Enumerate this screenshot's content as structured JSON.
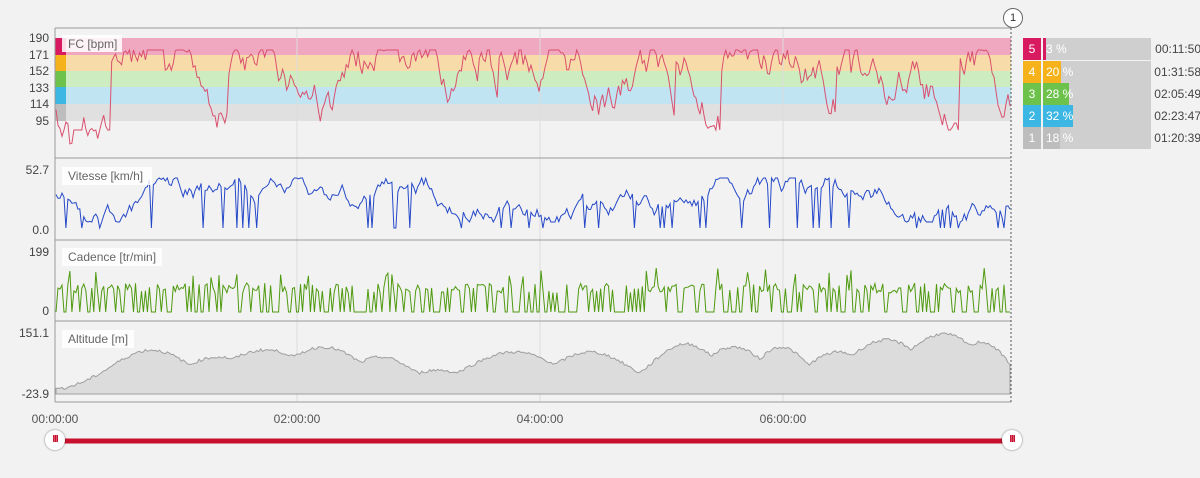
{
  "panels": {
    "hr": {
      "label": "FC [bpm]",
      "ticks": [
        "190",
        "171",
        "152",
        "133",
        "114",
        "95"
      ]
    },
    "speed": {
      "label": "Vitesse [km/h]",
      "max": "52.7",
      "min": "0.0"
    },
    "cadence": {
      "label": "Cadence [tr/min]",
      "max": "199",
      "min": "0"
    },
    "altitude": {
      "label": "Altitude [m]",
      "max": "151.1",
      "min": "-23.9"
    }
  },
  "x_axis": {
    "ticks": [
      "00:00:00",
      "02:00:00",
      "04:00:00",
      "06:00:00"
    ]
  },
  "marker": {
    "label": "1"
  },
  "zones": [
    {
      "num": "5",
      "pct": "3 %",
      "time": "00:11:50",
      "fraction": 0.03,
      "color": "#d81b60"
    },
    {
      "num": "4",
      "pct": "20 %",
      "time": "01:31:58",
      "fraction": 0.2,
      "color": "#f5b21b"
    },
    {
      "num": "3",
      "pct": "28 %",
      "time": "02:05:49",
      "fraction": 0.28,
      "color": "#6cc24a"
    },
    {
      "num": "2",
      "pct": "32 %",
      "time": "02:23:47",
      "fraction": 0.32,
      "color": "#3cb6e3"
    },
    {
      "num": "1",
      "pct": "18 %",
      "time": "01:20:39",
      "fraction": 0.18,
      "color": "#bdbdbd"
    }
  ],
  "range_slider": {
    "handle_left": "III",
    "handle_right": "III",
    "color": "#c8102e"
  },
  "chart_data": [
    {
      "type": "line",
      "ylabel": "FC [bpm]",
      "ylim": [
        95,
        190
      ],
      "xlim": [
        "00:00:00",
        "07:50:00"
      ],
      "zone_colors": [
        "#f0a8c0",
        "#f7dcaa",
        "#cdecc0",
        "#c0e4f2",
        "#e0e0e0"
      ],
      "line_color": "#d9506e"
    },
    {
      "type": "line",
      "ylabel": "Vitesse [km/h]",
      "ylim": [
        0.0,
        52.7
      ],
      "line_color": "#2448c8"
    },
    {
      "type": "line",
      "ylabel": "Cadence [tr/min]",
      "ylim": [
        0,
        199
      ],
      "line_color": "#4f9a10"
    },
    {
      "type": "area",
      "ylabel": "Altitude [m]",
      "ylim": [
        -23.9,
        151.1
      ],
      "line_color": "#9e9e9e",
      "fill_color": "#dcdcdc"
    }
  ]
}
